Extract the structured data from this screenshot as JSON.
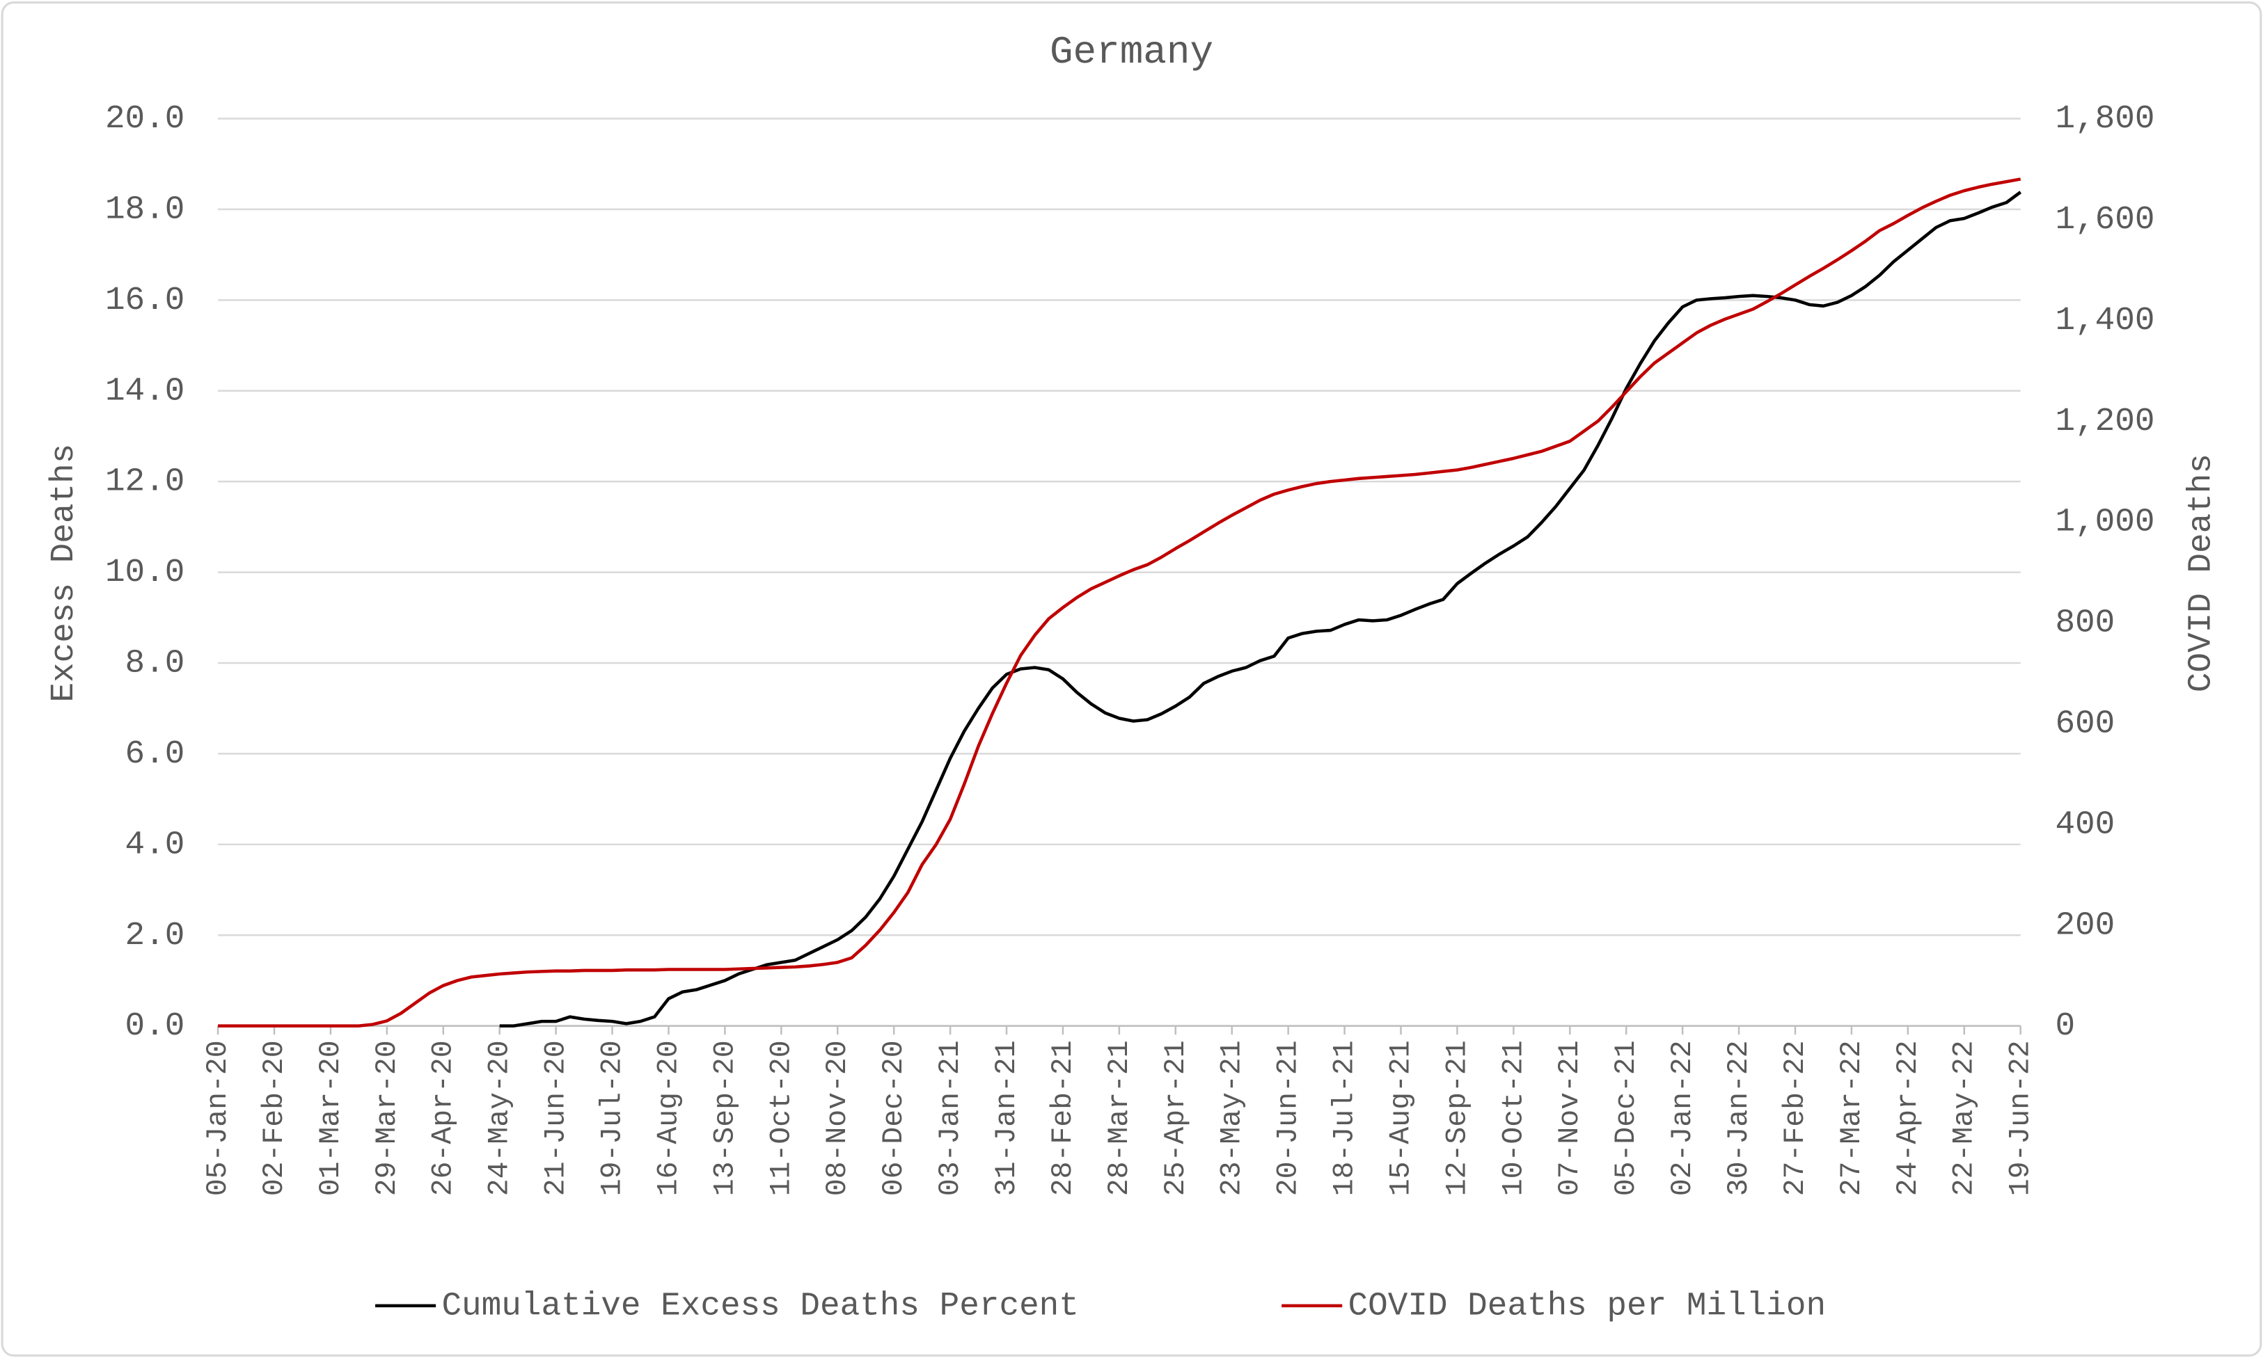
{
  "chart_data": {
    "type": "line",
    "title": "Germany",
    "ylabel": "Excess Deaths",
    "y2label": "COVID Deaths",
    "categories": [
      "05-Jan-20",
      null,
      null,
      null,
      "02-Feb-20",
      null,
      null,
      null,
      "01-Mar-20",
      null,
      null,
      null,
      "29-Mar-20",
      null,
      null,
      null,
      "26-Apr-20",
      null,
      null,
      null,
      "24-May-20",
      null,
      null,
      null,
      "21-Jun-20",
      null,
      null,
      null,
      "19-Jul-20",
      null,
      null,
      null,
      "16-Aug-20",
      null,
      null,
      null,
      "13-Sep-20",
      null,
      null,
      null,
      "11-Oct-20",
      null,
      null,
      null,
      "08-Nov-20",
      null,
      null,
      null,
      "06-Dec-20",
      null,
      null,
      null,
      "03-Jan-21",
      null,
      null,
      null,
      "31-Jan-21",
      null,
      null,
      null,
      "28-Feb-21",
      null,
      null,
      null,
      "28-Mar-21",
      null,
      null,
      null,
      "25-Apr-21",
      null,
      null,
      null,
      "23-May-21",
      null,
      null,
      null,
      "20-Jun-21",
      null,
      null,
      null,
      "18-Jul-21",
      null,
      null,
      null,
      "15-Aug-21",
      null,
      null,
      null,
      "12-Sep-21",
      null,
      null,
      null,
      "10-Oct-21",
      null,
      null,
      null,
      "07-Nov-21",
      null,
      null,
      null,
      "05-Dec-21",
      null,
      null,
      null,
      "02-Jan-22",
      null,
      null,
      null,
      "30-Jan-22",
      null,
      null,
      null,
      "27-Feb-22",
      null,
      null,
      null,
      "27-Mar-22",
      null,
      null,
      null,
      "24-Apr-22",
      null,
      null,
      null,
      "22-May-22",
      null,
      null,
      null,
      "19-Jun-22"
    ],
    "series": [
      {
        "name": "Cumulative Excess Deaths Percent",
        "color": "#000000",
        "axis": "y",
        "values": [
          null,
          null,
          null,
          null,
          null,
          null,
          null,
          null,
          null,
          null,
          null,
          null,
          null,
          null,
          null,
          null,
          null,
          null,
          null,
          null,
          0.0,
          0.0,
          0.05,
          0.1,
          0.1,
          0.2,
          0.15,
          0.12,
          0.1,
          0.05,
          0.1,
          0.2,
          0.6,
          0.75,
          0.8,
          0.9,
          1.0,
          1.15,
          1.25,
          1.35,
          1.4,
          1.45,
          1.6,
          1.75,
          1.9,
          2.1,
          2.4,
          2.8,
          3.3,
          3.9,
          4.5,
          5.2,
          5.9,
          6.5,
          7.0,
          7.45,
          7.75,
          7.87,
          7.9,
          7.85,
          7.65,
          7.35,
          7.1,
          6.9,
          6.78,
          6.72,
          6.75,
          6.88,
          7.05,
          7.25,
          7.55,
          7.7,
          7.82,
          7.9,
          8.05,
          8.15,
          8.55,
          8.65,
          8.7,
          8.72,
          8.85,
          8.95,
          8.93,
          8.95,
          9.05,
          9.18,
          9.3,
          9.4,
          9.75,
          9.98,
          10.2,
          10.4,
          10.58,
          10.78,
          11.1,
          11.45,
          11.85,
          12.25,
          12.8,
          13.4,
          14.05,
          14.6,
          15.1,
          15.5,
          15.85,
          16.0,
          16.03,
          16.05,
          16.08,
          16.1,
          16.08,
          16.05,
          16.0,
          15.9,
          15.87,
          15.95,
          16.1,
          16.3,
          16.55,
          16.85,
          17.1,
          17.35,
          17.6,
          17.75,
          17.8,
          17.92,
          18.05,
          18.15,
          18.38
        ]
      },
      {
        "name": "COVID Deaths per Million",
        "color": "#c00000",
        "axis": "y2",
        "values": [
          0,
          0,
          0,
          0,
          0,
          0,
          0,
          0,
          0,
          0,
          0,
          3,
          10,
          25,
          45,
          65,
          80,
          90,
          97,
          100,
          103,
          105,
          107,
          108,
          109,
          109,
          110,
          110,
          110,
          111,
          111,
          111,
          112,
          112,
          112,
          112,
          112,
          113,
          114,
          115,
          116,
          117,
          119,
          122,
          126,
          135,
          160,
          190,
          225,
          265,
          320,
          360,
          410,
          480,
          555,
          620,
          680,
          735,
          775,
          808,
          830,
          850,
          867,
          880,
          893,
          905,
          915,
          930,
          947,
          963,
          980,
          997,
          1013,
          1028,
          1043,
          1055,
          1063,
          1070,
          1076,
          1080,
          1083,
          1086,
          1088,
          1090,
          1092,
          1094,
          1097,
          1100,
          1103,
          1108,
          1114,
          1120,
          1126,
          1133,
          1140,
          1150,
          1160,
          1180,
          1200,
          1228,
          1258,
          1288,
          1315,
          1335,
          1355,
          1375,
          1390,
          1402,
          1412,
          1422,
          1437,
          1453,
          1470,
          1487,
          1503,
          1520,
          1538,
          1557,
          1578,
          1592,
          1608,
          1623,
          1636,
          1648,
          1657,
          1664,
          1670,
          1675,
          1680
        ]
      }
    ],
    "ylim": [
      0,
      20
    ],
    "yticks": [
      {
        "value": 0,
        "label": "0.0"
      },
      {
        "value": 2,
        "label": "2.0"
      },
      {
        "value": 4,
        "label": "4.0"
      },
      {
        "value": 6,
        "label": "6.0"
      },
      {
        "value": 8,
        "label": "8.0"
      },
      {
        "value": 10,
        "label": "10.0"
      },
      {
        "value": 12,
        "label": "12.0"
      },
      {
        "value": 14,
        "label": "14.0"
      },
      {
        "value": 16,
        "label": "16.0"
      },
      {
        "value": 18,
        "label": "18.0"
      },
      {
        "value": 20,
        "label": "20.0"
      }
    ],
    "y2lim": [
      0,
      1800
    ],
    "y2ticks": [
      0,
      200,
      400,
      600,
      800,
      {
        "value": 1000,
        "label": "1,000"
      },
      {
        "value": 1200,
        "label": "1,200"
      },
      {
        "value": 1400,
        "label": "1,400"
      },
      {
        "value": 1600,
        "label": "1,600"
      },
      {
        "value": 1800,
        "label": "1,800"
      }
    ],
    "grid": true,
    "legend": "bottom"
  }
}
